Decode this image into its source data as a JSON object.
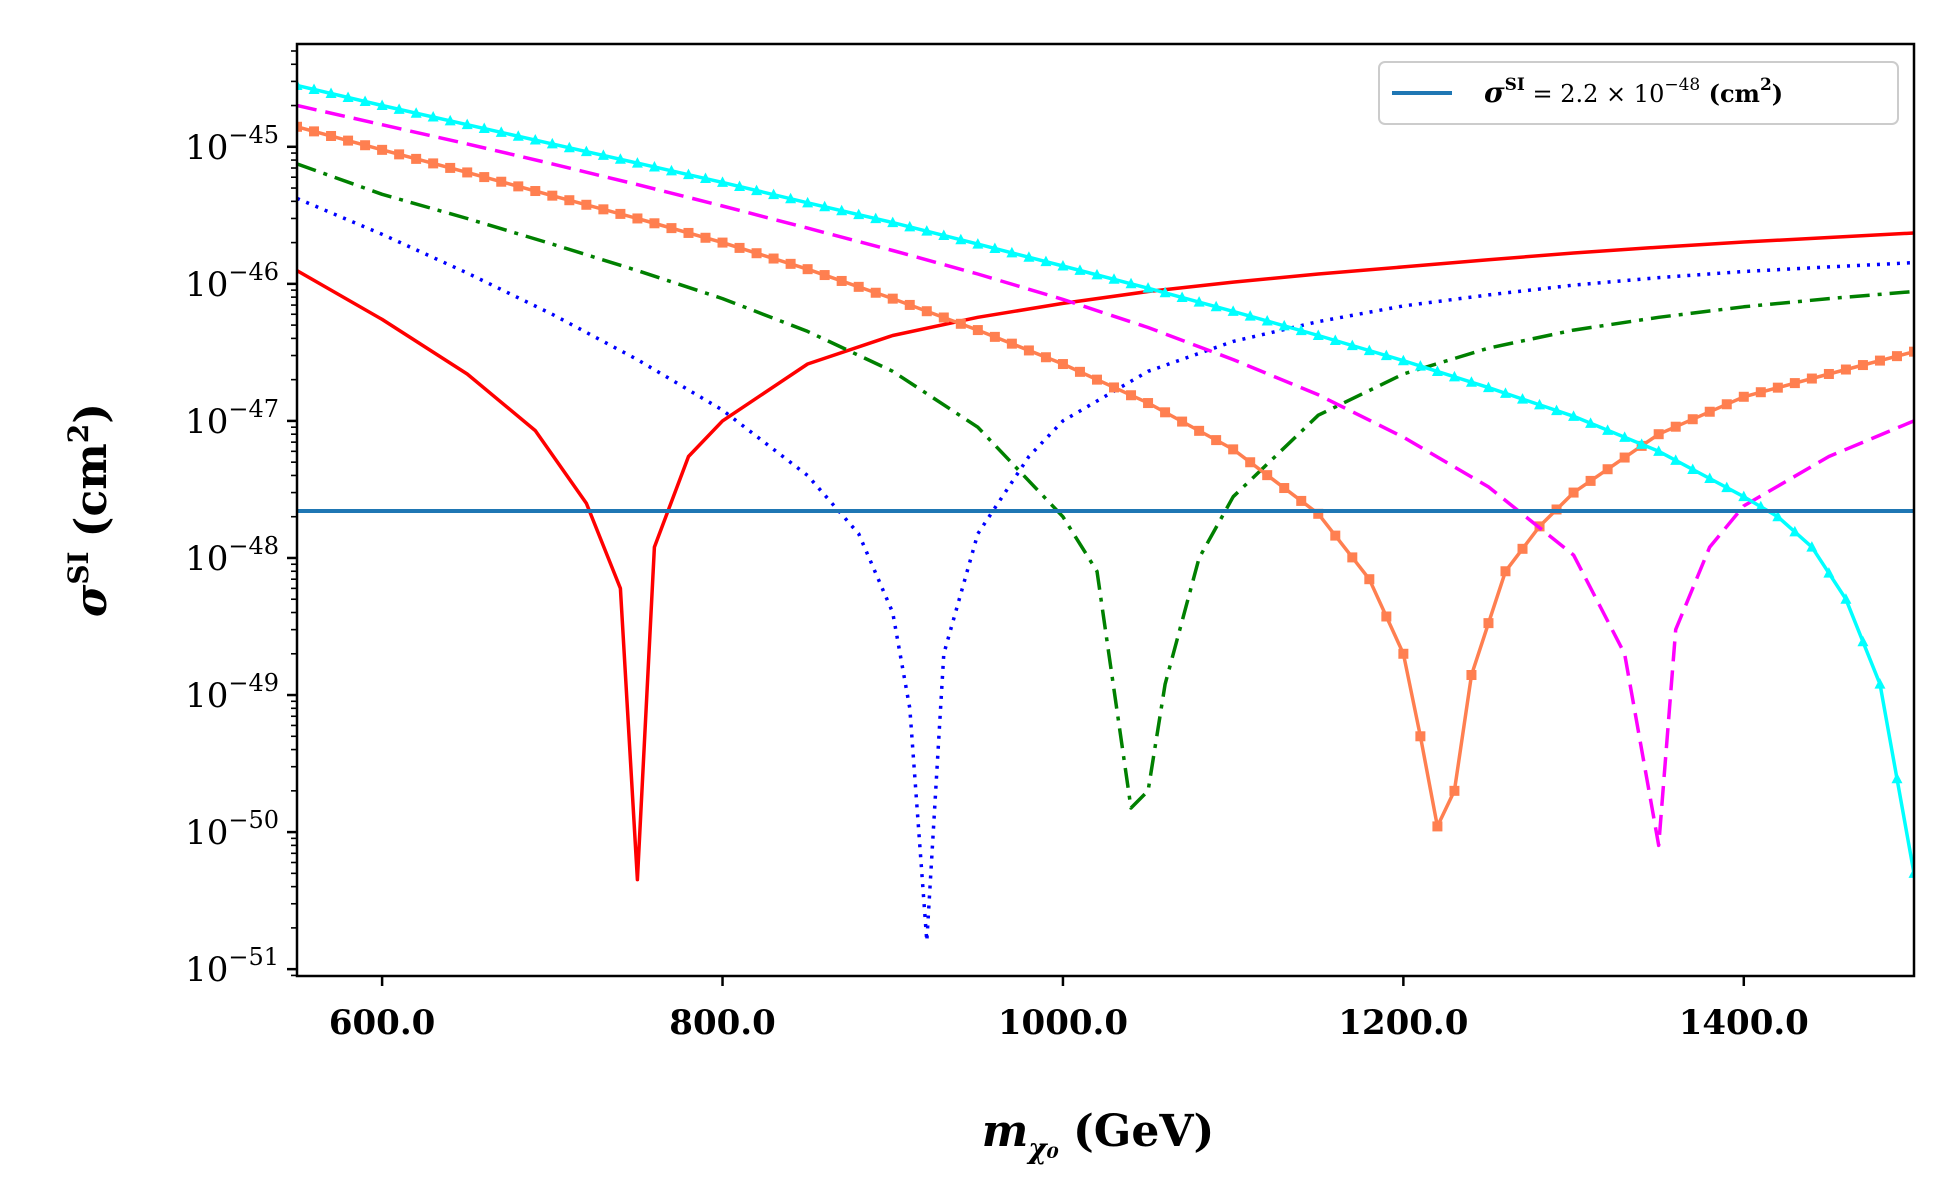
{
  "chart_data": {
    "type": "line",
    "title": "",
    "xlabel": {
      "main": "m",
      "sub": "χ₀",
      "unit": "(GeV)"
    },
    "ylabel": {
      "main": "σ",
      "sup": "SI",
      "unit": "(cm",
      "unit_sup": "2",
      "unit_close": ")"
    },
    "x_range": [
      550,
      1500
    ],
    "y_range_log10": [
      -51.05,
      -44.25
    ],
    "x_ticks": [
      600,
      800,
      1000,
      1200,
      1400
    ],
    "x_tick_labels": [
      "600.0",
      "800.0",
      "1000.0",
      "1200.0",
      "1400.0"
    ],
    "y_ticks_log10": [
      -45,
      -46,
      -47,
      -48,
      -49,
      -50,
      -51
    ],
    "y_tick_base": "10",
    "y_tick_exponents": [
      "−45",
      "−46",
      "−47",
      "−48",
      "−49",
      "−50",
      "−51"
    ],
    "grid": false,
    "legend_position": "top-right",
    "legend": [
      {
        "label_main": "σ",
        "label_sup": "SI",
        "label_eq": " = 2.2 × 10",
        "label_exp": "−48",
        "label_unit": " (cm",
        "label_unit_sup": "2",
        "label_unit_close": ")",
        "color": "#1f77b4"
      }
    ],
    "reference_line": {
      "name": "σSI = 2.2 × 10^-48 (cm^2)",
      "y": 2.2e-48,
      "color": "#1f77b4"
    },
    "series": [
      {
        "name": "curve-red",
        "color": "#ff0000",
        "style": "solid",
        "marker": "none",
        "x": [
          550,
          600,
          650,
          690,
          720,
          740,
          750,
          760,
          780,
          800,
          850,
          900,
          950,
          1000,
          1050,
          1100,
          1150,
          1200,
          1250,
          1300,
          1350,
          1400,
          1450,
          1500
        ],
        "y": [
          1.25e-46,
          5.5e-47,
          2.2e-47,
          8.5e-48,
          2.5e-48,
          6e-49,
          4.5e-51,
          1.2e-48,
          5.5e-48,
          1e-47,
          2.6e-47,
          4.2e-47,
          5.7e-47,
          7.2e-47,
          8.8e-47,
          1.03e-46,
          1.18e-46,
          1.33e-46,
          1.5e-46,
          1.68e-46,
          1.85e-46,
          2.02e-46,
          2.18e-46,
          2.35e-46
        ]
      },
      {
        "name": "curve-blue",
        "color": "#0000ff",
        "style": "dotted",
        "marker": "none",
        "x": [
          550,
          600,
          650,
          700,
          750,
          800,
          850,
          880,
          900,
          910,
          920,
          930,
          950,
          980,
          1000,
          1050,
          1100,
          1150,
          1200,
          1250,
          1300,
          1350,
          1400,
          1450,
          1500
        ],
        "y": [
          4.2e-46,
          2.3e-46,
          1.2e-46,
          6e-47,
          2.8e-47,
          1.2e-47,
          4e-48,
          1.5e-48,
          4e-49,
          8e-50,
          1.6e-51,
          2e-49,
          1.5e-48,
          5.5e-48,
          1e-47,
          2.3e-47,
          3.8e-47,
          5.3e-47,
          6.9e-47,
          8.3e-47,
          9.8e-47,
          1.11e-46,
          1.23e-46,
          1.33e-46,
          1.43e-46
        ]
      },
      {
        "name": "curve-green",
        "color": "#008000",
        "style": "dashdot",
        "marker": "none",
        "x": [
          550,
          600,
          650,
          700,
          750,
          800,
          850,
          900,
          950,
          1000,
          1020,
          1040,
          1050,
          1060,
          1080,
          1100,
          1150,
          1200,
          1250,
          1300,
          1350,
          1400,
          1450,
          1500
        ],
        "y": [
          7.5e-46,
          4.5e-46,
          3e-46,
          1.95e-46,
          1.25e-46,
          7.8e-47,
          4.5e-47,
          2.3e-47,
          9e-48,
          2e-48,
          8e-49,
          1.5e-50,
          2e-50,
          1.2e-49,
          1e-48,
          2.8e-48,
          1.1e-47,
          2.2e-47,
          3.4e-47,
          4.6e-47,
          5.7e-47,
          6.8e-47,
          7.8e-47,
          8.8e-47
        ]
      },
      {
        "name": "curve-coral",
        "color": "#ff7f50",
        "style": "solid",
        "marker": "square",
        "x": [
          550,
          600,
          650,
          700,
          750,
          800,
          850,
          900,
          950,
          1000,
          1050,
          1100,
          1150,
          1180,
          1200,
          1210,
          1220,
          1230,
          1240,
          1260,
          1280,
          1300,
          1350,
          1400,
          1450,
          1500
        ],
        "y": [
          1.4e-45,
          9.5e-46,
          6.5e-46,
          4.4e-46,
          3e-46,
          2e-46,
          1.28e-46,
          7.8e-47,
          4.6e-47,
          2.6e-47,
          1.35e-47,
          6.2e-48,
          2.1e-48,
          7e-49,
          2e-49,
          5e-50,
          1.1e-50,
          2e-50,
          1.4e-49,
          8e-49,
          1.7e-48,
          3e-48,
          8e-48,
          1.5e-47,
          2.2e-47,
          3.2e-47
        ]
      },
      {
        "name": "curve-magenta",
        "color": "#ff00ff",
        "style": "dashed",
        "marker": "none",
        "x": [
          550,
          600,
          650,
          700,
          750,
          800,
          850,
          900,
          950,
          1000,
          1050,
          1100,
          1150,
          1200,
          1250,
          1300,
          1330,
          1350,
          1360,
          1380,
          1400,
          1450,
          1500
        ],
        "y": [
          2e-45,
          1.45e-45,
          1.05e-45,
          7.5e-46,
          5.3e-46,
          3.7e-46,
          2.55e-46,
          1.75e-46,
          1.18e-46,
          7.7e-47,
          4.8e-47,
          2.8e-47,
          1.55e-47,
          7.6e-48,
          3.3e-48,
          1.05e-48,
          2e-49,
          8e-51,
          3e-49,
          1.2e-48,
          2.4e-48,
          5.5e-48,
          1e-47
        ]
      },
      {
        "name": "curve-cyan",
        "color": "#00ffff",
        "style": "solid",
        "marker": "triangle",
        "x": [
          550,
          600,
          650,
          700,
          750,
          800,
          850,
          900,
          950,
          1000,
          1050,
          1100,
          1150,
          1200,
          1250,
          1300,
          1350,
          1380,
          1400,
          1420,
          1440,
          1460,
          1480,
          1500
        ],
        "y": [
          2.8e-45,
          2e-45,
          1.45e-45,
          1.05e-45,
          7.6e-46,
          5.5e-46,
          3.9e-46,
          2.8e-46,
          1.95e-46,
          1.35e-46,
          9.3e-47,
          6.3e-47,
          4.2e-47,
          2.75e-47,
          1.75e-47,
          1.08e-47,
          6e-48,
          3.8e-48,
          2.8e-48,
          2e-48,
          1.2e-48,
          5e-49,
          1.2e-49,
          5e-51
        ]
      }
    ]
  }
}
